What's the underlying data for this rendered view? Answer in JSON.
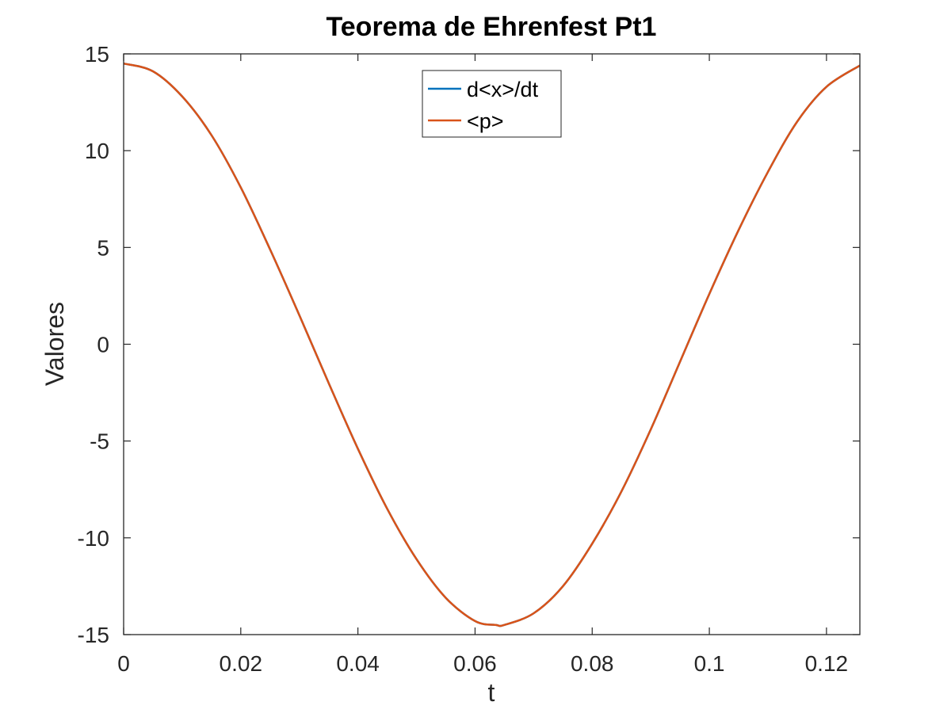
{
  "chart_data": {
    "type": "line",
    "title": "Teorema de Ehrenfest Pt1",
    "xlabel": "t",
    "ylabel": "Valores",
    "xlim": [
      0,
      0.1257
    ],
    "ylim": [
      -15,
      15
    ],
    "xticks": [
      0,
      0.02,
      0.04,
      0.06,
      0.08,
      0.1,
      0.12
    ],
    "xtick_labels": [
      "0",
      "0.02",
      "0.04",
      "0.06",
      "0.08",
      "0.1",
      "0.12"
    ],
    "yticks": [
      -15,
      -10,
      -5,
      0,
      5,
      10,
      15
    ],
    "ytick_labels": [
      "-15",
      "-10",
      "-5",
      "0",
      "5",
      "10",
      "15"
    ],
    "grid": false,
    "box": true,
    "legend_position": "top-center",
    "x": [
      0,
      0.005,
      0.01,
      0.015,
      0.02,
      0.025,
      0.03,
      0.035,
      0.04,
      0.045,
      0.05,
      0.055,
      0.06,
      0.0635,
      0.065,
      0.07,
      0.075,
      0.08,
      0.085,
      0.09,
      0.095,
      0.1,
      0.105,
      0.11,
      0.115,
      0.12,
      0.1257
    ],
    "series": [
      {
        "name": "d<x>/dt",
        "color": "#0072BD",
        "values": [
          14.5,
          14.1,
          12.8,
          10.8,
          8.1,
          4.9,
          1.5,
          -2.0,
          -5.4,
          -8.5,
          -11.1,
          -13.1,
          -14.3,
          -14.5,
          -14.5,
          -13.9,
          -12.5,
          -10.3,
          -7.6,
          -4.4,
          -0.9,
          2.6,
          5.9,
          8.9,
          11.5,
          13.3,
          14.4
        ]
      },
      {
        "name": "<p>",
        "color": "#D95319",
        "values": [
          14.5,
          14.1,
          12.8,
          10.8,
          8.1,
          4.9,
          1.5,
          -2.0,
          -5.4,
          -8.5,
          -11.1,
          -13.1,
          -14.3,
          -14.5,
          -14.5,
          -13.9,
          -12.5,
          -10.3,
          -7.6,
          -4.4,
          -0.9,
          2.6,
          5.9,
          8.9,
          11.5,
          13.3,
          14.4
        ]
      }
    ]
  }
}
